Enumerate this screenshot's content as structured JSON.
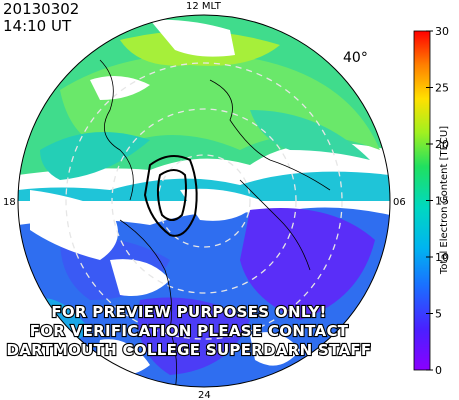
{
  "header": {
    "date": "20130302",
    "time": "14:10 UT"
  },
  "map": {
    "mlt_labels": {
      "top": "12 MLT",
      "left": "18",
      "right": "06",
      "bottom": "24"
    },
    "lat_label": "40°",
    "watermark": [
      "FOR PREVIEW PURPOSES ONLY!",
      "FOR VERIFICATION PLEASE CONTACT",
      "DARTMOUTH COLLEGE SUPERDARN STAFF"
    ]
  },
  "colorbar": {
    "title": "Total Electron Content [TECU]",
    "min": 0,
    "max": 30,
    "ticks": [
      "0",
      "5",
      "10",
      "15",
      "20",
      "25",
      "30"
    ]
  }
}
